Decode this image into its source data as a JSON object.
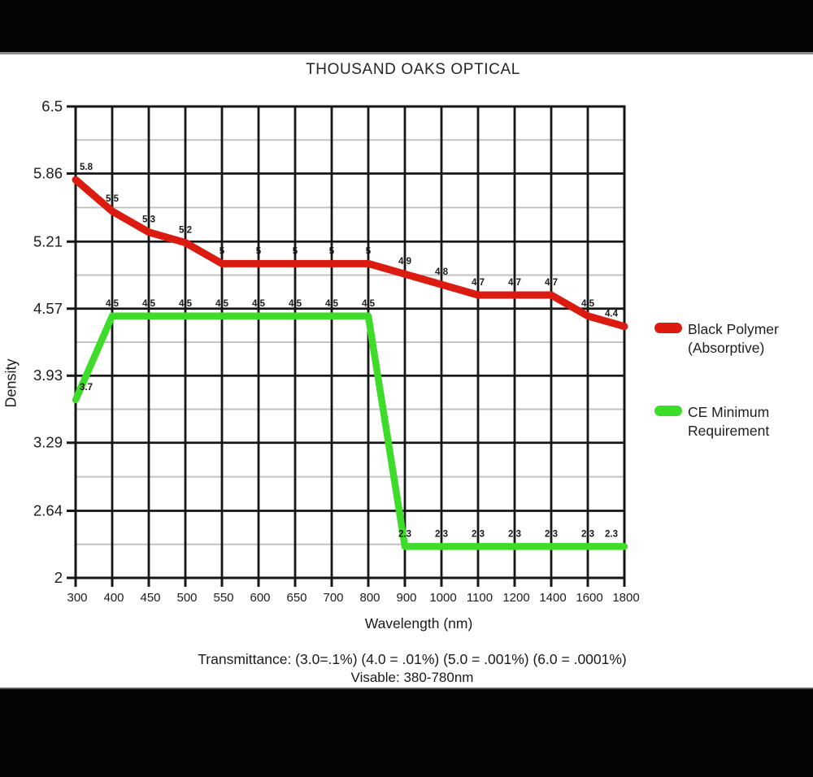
{
  "title": "THOUSAND OAKS OPTICAL",
  "chart_data": {
    "type": "line",
    "title": "THOUSAND OAKS OPTICAL",
    "xlabel": "Wavelength (nm)",
    "ylabel": "Density",
    "categories": [
      "300",
      "400",
      "450",
      "500",
      "550",
      "600",
      "650",
      "700",
      "800",
      "900",
      "1000",
      "1100",
      "1200",
      "1400",
      "1600",
      "1800"
    ],
    "y_tick_labels": [
      "6.5",
      "5.86",
      "5.21",
      "4.57",
      "3.93",
      "3.29",
      "2.64",
      "2"
    ],
    "ylim": [
      2,
      6.5
    ],
    "grid": "major black grid with faint gray minor horizontal lines at midpoints",
    "legend_position": "right",
    "point_labels_shown": true,
    "series": [
      {
        "name": "Black Polymer (Absorptive)",
        "color": "#dc1b10",
        "line_width": 9,
        "values": [
          5.8,
          5.5,
          5.3,
          5.2,
          5,
          5,
          5,
          5,
          5,
          4.9,
          4.8,
          4.7,
          4.7,
          4.7,
          4.5,
          4.4
        ]
      },
      {
        "name": "CE Minimum Requirement",
        "color": "#3cdc28",
        "line_width": 8.5,
        "values": [
          3.7,
          4.5,
          4.5,
          4.5,
          4.5,
          4.5,
          4.5,
          4.5,
          4.5,
          2.3,
          2.3,
          2.3,
          2.3,
          2.3,
          2.3,
          2.3
        ]
      }
    ]
  },
  "legend": {
    "items": [
      {
        "color": "#dc1b10",
        "lines": [
          "Black Polymer",
          "(Absorptive)"
        ]
      },
      {
        "color": "#3cdc28",
        "lines": [
          "CE Minimum",
          "Requirement"
        ]
      }
    ]
  },
  "footer": {
    "transmittance_note": "Transmittance: (3.0=.1%) (4.0 = .01%) (5.0 = .001%) (6.0 = .0001%)",
    "visible_note": "Visable: 380-780nm"
  },
  "colors": {
    "grid_major": "#161616",
    "grid_minor": "#c2c2c2",
    "text": "#1c1c1c",
    "letterbox": "#040404"
  }
}
